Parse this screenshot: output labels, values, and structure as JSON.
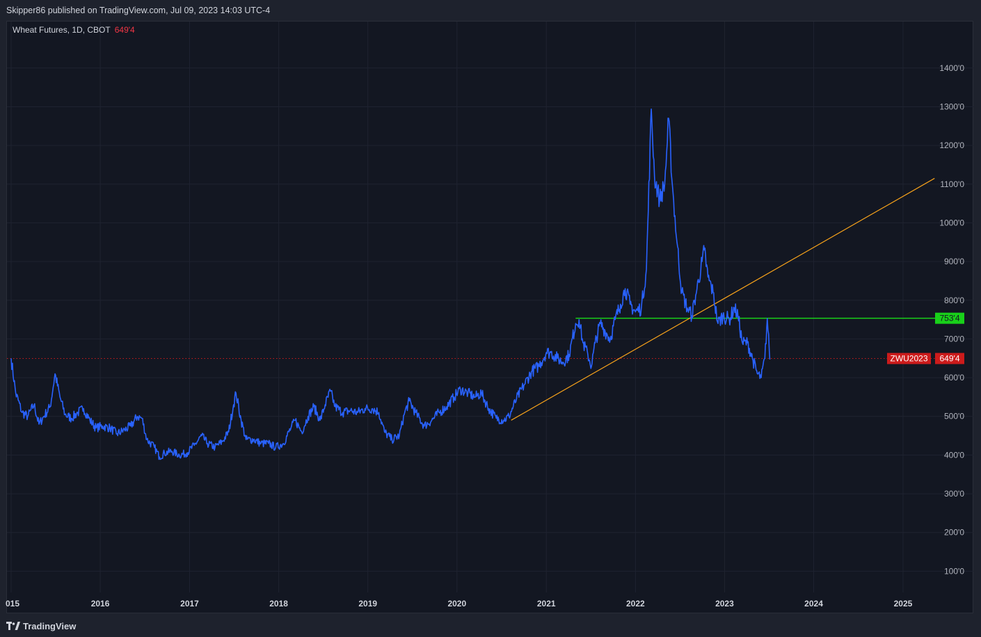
{
  "header": {
    "publish_line": "Skipper86 published on TradingView.com, Jul 09, 2023 14:03 UTC-4"
  },
  "legend": {
    "symbol_text": "Wheat Futures, 1D, CBOT",
    "last_price": "649'4"
  },
  "footer": {
    "brand": "TradingView"
  },
  "colors": {
    "background": "#131722",
    "price_line": "#2962ff",
    "trend_line": "#f7a21b",
    "horizontal_line": "#19d01a",
    "current_price": "#cc1b1b",
    "grid": "#1f2330",
    "axis_text": "#b2b5be"
  },
  "icons": [
    "tradingview-logo-icon"
  ],
  "chart_data": {
    "type": "line",
    "title": "Wheat Futures, 1D, CBOT",
    "x_ticks": [
      "015",
      "2016",
      "2017",
      "2018",
      "2019",
      "2020",
      "2021",
      "2022",
      "2023",
      "2024",
      "2025"
    ],
    "y_ticks": [
      "100'0",
      "200'0",
      "300'0",
      "400'0",
      "500'0",
      "600'0",
      "700'0",
      "800'0",
      "900'0",
      "1000'0",
      "1100'0",
      "1200'0",
      "1300'0",
      "1400'0"
    ],
    "ylim": [
      45,
      1520
    ],
    "xlim": [
      "2014-12-15",
      "2025-05-15"
    ],
    "grid": true,
    "series": [
      {
        "name": "ZWU2023",
        "points": [
          [
            "2015-01-01",
            650
          ],
          [
            "2015-01-20",
            560
          ],
          [
            "2015-02-15",
            510
          ],
          [
            "2015-03-10",
            500
          ],
          [
            "2015-04-05",
            530
          ],
          [
            "2015-04-25",
            480
          ],
          [
            "2015-05-15",
            500
          ],
          [
            "2015-06-10",
            525
          ],
          [
            "2015-06-30",
            610
          ],
          [
            "2015-07-20",
            550
          ],
          [
            "2015-08-10",
            505
          ],
          [
            "2015-09-05",
            495
          ],
          [
            "2015-10-01",
            510
          ],
          [
            "2015-10-25",
            520
          ],
          [
            "2015-11-20",
            490
          ],
          [
            "2015-12-15",
            470
          ],
          [
            "2016-01-10",
            475
          ],
          [
            "2016-02-10",
            470
          ],
          [
            "2016-03-10",
            455
          ],
          [
            "2016-04-10",
            465
          ],
          [
            "2016-05-05",
            475
          ],
          [
            "2016-06-01",
            500
          ],
          [
            "2016-06-20",
            495
          ],
          [
            "2016-07-10",
            440
          ],
          [
            "2016-08-10",
            420
          ],
          [
            "2016-08-31",
            395
          ],
          [
            "2016-09-20",
            405
          ],
          [
            "2016-10-20",
            410
          ],
          [
            "2016-11-20",
            400
          ],
          [
            "2016-12-20",
            405
          ],
          [
            "2017-01-20",
            425
          ],
          [
            "2017-02-20",
            450
          ],
          [
            "2017-03-15",
            430
          ],
          [
            "2017-04-15",
            420
          ],
          [
            "2017-05-15",
            435
          ],
          [
            "2017-06-10",
            460
          ],
          [
            "2017-06-30",
            530
          ],
          [
            "2017-07-10",
            560
          ],
          [
            "2017-07-31",
            490
          ],
          [
            "2017-08-20",
            440
          ],
          [
            "2017-09-20",
            440
          ],
          [
            "2017-10-20",
            430
          ],
          [
            "2017-11-20",
            430
          ],
          [
            "2017-12-20",
            420
          ],
          [
            "2018-01-20",
            430
          ],
          [
            "2018-02-20",
            470
          ],
          [
            "2018-03-10",
            490
          ],
          [
            "2018-04-05",
            460
          ],
          [
            "2018-05-01",
            500
          ],
          [
            "2018-05-25",
            525
          ],
          [
            "2018-06-20",
            490
          ],
          [
            "2018-07-10",
            530
          ],
          [
            "2018-08-01",
            565
          ],
          [
            "2018-08-20",
            525
          ],
          [
            "2018-09-20",
            510
          ],
          [
            "2018-10-20",
            515
          ],
          [
            "2018-11-20",
            510
          ],
          [
            "2018-12-20",
            520
          ],
          [
            "2019-01-20",
            520
          ],
          [
            "2019-02-15",
            510
          ],
          [
            "2019-03-10",
            460
          ],
          [
            "2019-04-10",
            440
          ],
          [
            "2019-05-10",
            450
          ],
          [
            "2019-06-01",
            510
          ],
          [
            "2019-06-20",
            540
          ],
          [
            "2019-07-15",
            510
          ],
          [
            "2019-08-20",
            475
          ],
          [
            "2019-09-20",
            490
          ],
          [
            "2019-10-20",
            510
          ],
          [
            "2019-11-20",
            525
          ],
          [
            "2019-12-20",
            550
          ],
          [
            "2020-01-15",
            570
          ],
          [
            "2020-02-15",
            560
          ],
          [
            "2020-03-15",
            550
          ],
          [
            "2020-04-10",
            560
          ],
          [
            "2020-05-10",
            520
          ],
          [
            "2020-06-10",
            495
          ],
          [
            "2020-07-10",
            490
          ],
          [
            "2020-08-01",
            500
          ],
          [
            "2020-09-01",
            545
          ],
          [
            "2020-10-01",
            580
          ],
          [
            "2020-11-01",
            615
          ],
          [
            "2020-12-01",
            630
          ],
          [
            "2021-01-01",
            665
          ],
          [
            "2021-01-20",
            665
          ],
          [
            "2021-02-15",
            650
          ],
          [
            "2021-03-10",
            640
          ],
          [
            "2021-04-05",
            660
          ],
          [
            "2021-05-01",
            740
          ],
          [
            "2021-05-15",
            750
          ],
          [
            "2021-05-31",
            690
          ],
          [
            "2021-06-20",
            660
          ],
          [
            "2021-07-05",
            630
          ],
          [
            "2021-07-20",
            690
          ],
          [
            "2021-08-10",
            740
          ],
          [
            "2021-08-30",
            720
          ],
          [
            "2021-09-20",
            700
          ],
          [
            "2021-10-10",
            750
          ],
          [
            "2021-11-01",
            790
          ],
          [
            "2021-11-20",
            830
          ],
          [
            "2021-12-10",
            790
          ],
          [
            "2022-01-01",
            770
          ],
          [
            "2022-01-25",
            780
          ],
          [
            "2022-02-15",
            880
          ],
          [
            "2022-03-07",
            1294
          ],
          [
            "2022-03-20",
            1120
          ],
          [
            "2022-04-10",
            1060
          ],
          [
            "2022-05-01",
            1100
          ],
          [
            "2022-05-17",
            1270
          ],
          [
            "2022-06-01",
            1100
          ],
          [
            "2022-06-20",
            950
          ],
          [
            "2022-07-10",
            820
          ],
          [
            "2022-08-01",
            780
          ],
          [
            "2022-08-20",
            760
          ],
          [
            "2022-09-10",
            830
          ],
          [
            "2022-10-01",
            900
          ],
          [
            "2022-10-10",
            930
          ],
          [
            "2022-10-25",
            860
          ],
          [
            "2022-11-15",
            820
          ],
          [
            "2022-12-05",
            740
          ],
          [
            "2022-12-25",
            760
          ],
          [
            "2023-01-20",
            750
          ],
          [
            "2023-02-10",
            780
          ],
          [
            "2023-02-25",
            760
          ],
          [
            "2023-03-15",
            690
          ],
          [
            "2023-04-05",
            690
          ],
          [
            "2023-04-25",
            650
          ],
          [
            "2023-05-15",
            610
          ],
          [
            "2023-05-31",
            600
          ],
          [
            "2023-06-15",
            650
          ],
          [
            "2023-06-25",
            753
          ],
          [
            "2023-07-03",
            670
          ],
          [
            "2023-07-07",
            649
          ]
        ]
      }
    ],
    "trend_line": {
      "from": [
        "2020-08-10",
        490
      ],
      "to": [
        "2025-05-10",
        1115
      ]
    },
    "horizontal_line": {
      "from": "2021-05-01",
      "value": 753.5,
      "label": "753'4"
    },
    "price_line": {
      "value": 649.5,
      "symbol": "ZWU2023",
      "label": "649'4"
    }
  }
}
